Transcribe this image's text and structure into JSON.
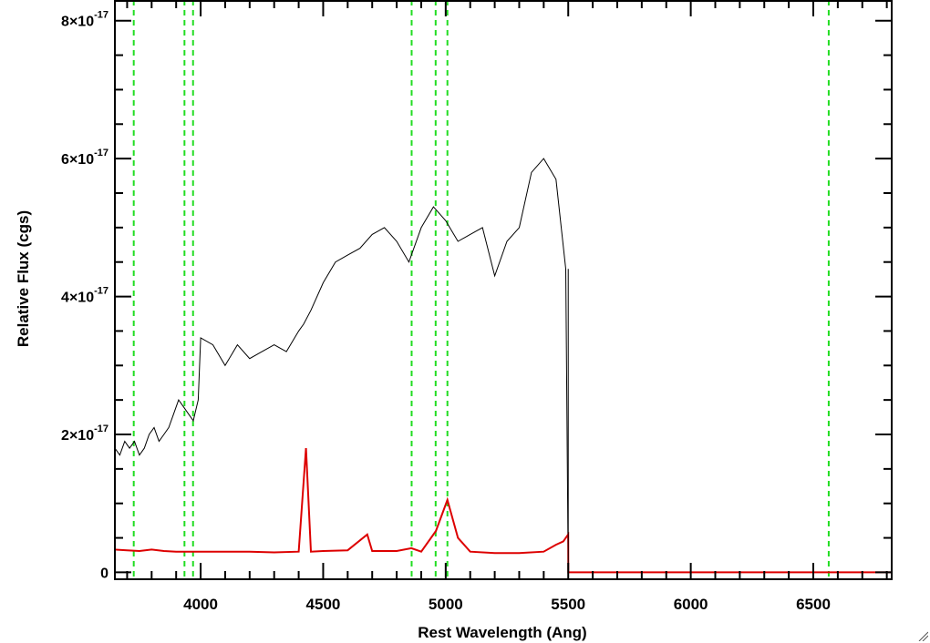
{
  "chart_data": {
    "type": "line",
    "xlabel": "Rest Wavelength (Ang)",
    "ylabel": "Relative Flux (cgs)",
    "xlim": [
      3650,
      6820
    ],
    "ylim": [
      -1e-18,
      8.3e-17
    ],
    "x_ticks": [
      4000,
      4500,
      5000,
      5500,
      6000,
      6500
    ],
    "y_ticks": [
      {
        "value": 0,
        "mantissa": "0",
        "exponent": ""
      },
      {
        "value": 2e-17,
        "mantissa": "2×10",
        "exponent": "-17"
      },
      {
        "value": 4e-17,
        "mantissa": "4×10",
        "exponent": "-17"
      },
      {
        "value": 6e-17,
        "mantissa": "6×10",
        "exponent": "-17"
      },
      {
        "value": 8e-17,
        "mantissa": "8×10",
        "exponent": "-17"
      }
    ],
    "x_minor_step": 100,
    "y_minor_step": 5e-18,
    "grid": false,
    "reference_lines_x": [
      3727,
      3934,
      3969,
      4861,
      4959,
      5007,
      6563
    ],
    "spectrum_cutoff": 5500,
    "series": [
      {
        "color": "#000000",
        "x": [
          3650,
          3670,
          3690,
          3710,
          3730,
          3750,
          3770,
          3790,
          3810,
          3830,
          3850,
          3870,
          3890,
          3910,
          3930,
          3950,
          3970,
          3990,
          4000,
          4050,
          4100,
          4150,
          4200,
          4250,
          4300,
          4350,
          4400,
          4420,
          4450,
          4500,
          4550,
          4600,
          4650,
          4700,
          4750,
          4800,
          4850,
          4900,
          4950,
          5000,
          5050,
          5100,
          5150,
          5200,
          5250,
          5300,
          5350,
          5400,
          5450,
          5490,
          5500
        ],
        "y": [
          1.8e-17,
          1.7e-17,
          1.9e-17,
          1.8e-17,
          1.9e-17,
          1.7e-17,
          1.8e-17,
          2e-17,
          2.1e-17,
          1.9e-17,
          2e-17,
          2.1e-17,
          2.3e-17,
          2.5e-17,
          2.4e-17,
          2.3e-17,
          2.2e-17,
          2.5e-17,
          3.4e-17,
          3.3e-17,
          3e-17,
          3.3e-17,
          3.1e-17,
          3.2e-17,
          3.3e-17,
          3.2e-17,
          3.5e-17,
          3.6e-17,
          3.8e-17,
          4.2e-17,
          4.5e-17,
          4.6e-17,
          4.7e-17,
          4.9e-17,
          5e-17,
          4.8e-17,
          4.5e-17,
          5e-17,
          5.3e-17,
          5.1e-17,
          4.8e-17,
          4.9e-17,
          5e-17,
          4.3e-17,
          4.8e-17,
          5e-17,
          5.8e-17,
          6e-17,
          5.7e-17,
          4.4e-17,
          0
        ]
      },
      {
        "color": "#dd0000",
        "x": [
          3650,
          3700,
          3750,
          3800,
          3850,
          3900,
          3950,
          4000,
          4100,
          4200,
          4300,
          4400,
          4430,
          4450,
          4500,
          4600,
          4680,
          4700,
          4800,
          4860,
          4900,
          4960,
          5007,
          5050,
          5100,
          5200,
          5300,
          5400,
          5450,
          5480,
          5500,
          5500.1,
          6000,
          6500,
          6820
        ],
        "y": [
          3.3e-18,
          3.2e-18,
          3.1e-18,
          3.3e-18,
          3.1e-18,
          3e-18,
          3e-18,
          3e-18,
          3e-18,
          3e-18,
          2.9e-18,
          3e-18,
          1.8e-17,
          3e-18,
          3.1e-18,
          3.2e-18,
          5.5e-18,
          3.1e-18,
          3.1e-18,
          3.5e-18,
          3e-18,
          6e-18,
          1.05e-17,
          5e-18,
          3e-18,
          2.8e-18,
          2.8e-18,
          3e-18,
          4e-18,
          4.5e-18,
          5.5e-18,
          0,
          0,
          0,
          0
        ]
      }
    ]
  }
}
